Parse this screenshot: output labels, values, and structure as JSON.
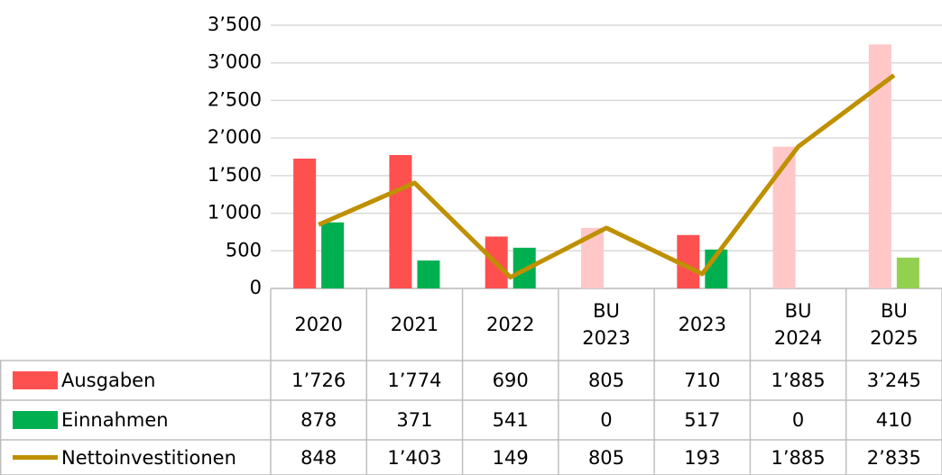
{
  "chart_data": {
    "type": "bar",
    "categories": [
      "2020",
      "2021",
      "2022",
      "BU 2023",
      "2023",
      "BU 2024",
      "BU 2025"
    ],
    "series": [
      {
        "name": "Ausgaben",
        "type": "bar",
        "color": "#ff5050",
        "colors": [
          "#ff5050",
          "#ff5050",
          "#ff5050",
          "#ffc7c7",
          "#ff5050",
          "#ffc7c7",
          "#ffc7c7"
        ],
        "values": [
          1726,
          1774,
          690,
          805,
          710,
          1885,
          3245
        ],
        "value_labels": [
          "1’726",
          "1’774",
          "690",
          "805",
          "710",
          "1’885",
          "3’245"
        ]
      },
      {
        "name": "Einnahmen",
        "type": "bar",
        "color": "#00b050",
        "colors": [
          "#00b050",
          "#00b050",
          "#00b050",
          "#00b050",
          "#00b050",
          "#00b050",
          "#92d050"
        ],
        "values": [
          878,
          371,
          541,
          0,
          517,
          0,
          410
        ],
        "value_labels": [
          "878",
          "371",
          "541",
          "0",
          "517",
          "0",
          "410"
        ]
      },
      {
        "name": "Nettoinvestitionen",
        "type": "line",
        "color": "#bf9000",
        "values": [
          848,
          1403,
          149,
          805,
          193,
          1885,
          2835
        ],
        "value_labels": [
          "848",
          "1’403",
          "149",
          "805",
          "193",
          "1’885",
          "2’835"
        ]
      }
    ],
    "ylim": [
      0,
      3500
    ],
    "yticks": [
      0,
      500,
      {
        "value": 1000,
        "label": "1’000"
      },
      {
        "value": 1500,
        "label": "1’500"
      },
      {
        "value": 2000,
        "label": "2’000"
      },
      {
        "value": 2500,
        "label": "2’500"
      },
      {
        "value": 3000,
        "label": "3’000"
      },
      {
        "value": 3500,
        "label": "3’500"
      }
    ],
    "grid": true
  }
}
